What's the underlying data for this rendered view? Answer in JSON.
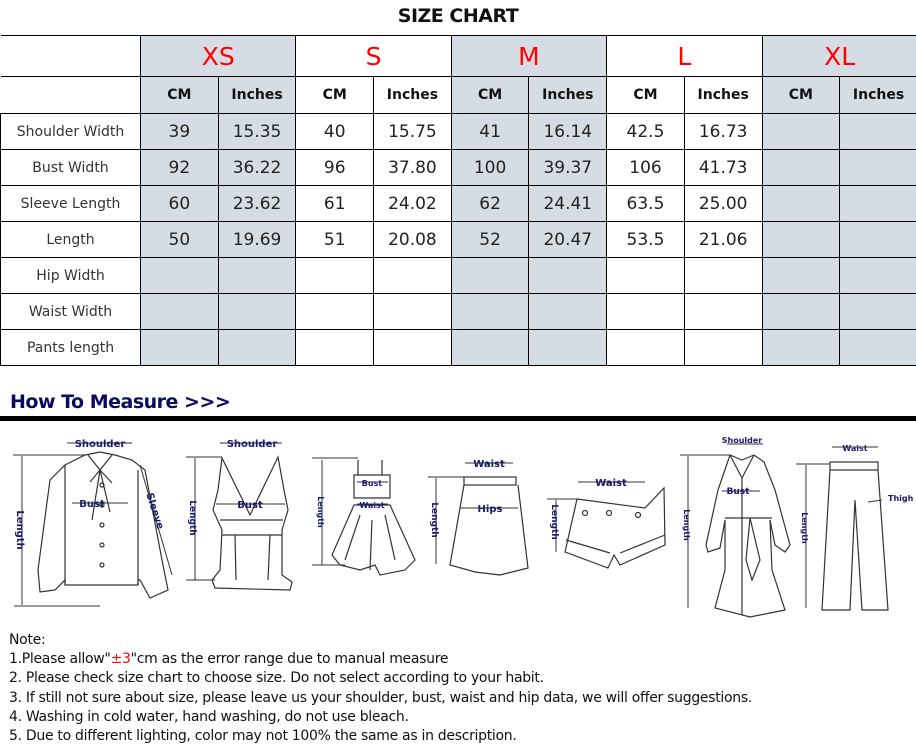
{
  "title": "SIZE CHART",
  "sizes": [
    "XS",
    "S",
    "M",
    "L",
    "XL"
  ],
  "units": [
    "CM",
    "Inches"
  ],
  "shaded_sizes": [
    "XS",
    "M",
    "XL"
  ],
  "colors": {
    "size_label": "#ff0000",
    "shading": "#d6dce4",
    "heading": "#0a0a60",
    "diagram_label": "#1a1a6e"
  },
  "rows": [
    {
      "label": "Shoulder Width",
      "values": [
        "39",
        "15.35",
        "40",
        "15.75",
        "41",
        "16.14",
        "42.5",
        "16.73",
        "",
        ""
      ]
    },
    {
      "label": "Bust Width",
      "values": [
        "92",
        "36.22",
        "96",
        "37.80",
        "100",
        "39.37",
        "106",
        "41.73",
        "",
        ""
      ]
    },
    {
      "label": "Sleeve Length",
      "values": [
        "60",
        "23.62",
        "61",
        "24.02",
        "62",
        "24.41",
        "63.5",
        "25.00",
        "",
        ""
      ]
    },
    {
      "label": "Length",
      "values": [
        "50",
        "19.69",
        "51",
        "20.08",
        "52",
        "20.47",
        "53.5",
        "21.06",
        "",
        ""
      ]
    },
    {
      "label": "Hip Width",
      "values": [
        "",
        "",
        "",
        "",
        "",
        "",
        "",
        "",
        "",
        ""
      ]
    },
    {
      "label": "Waist Width",
      "values": [
        "",
        "",
        "",
        "",
        "",
        "",
        "",
        "",
        "",
        ""
      ]
    },
    {
      "label": "Pants length",
      "values": [
        "",
        "",
        "",
        "",
        "",
        "",
        "",
        "",
        "",
        ""
      ]
    }
  ],
  "measure": {
    "heading": "How To Measure >>>",
    "labels": {
      "shoulder": "Shoulder",
      "bust": "Bust",
      "sleeve": "Sleeve",
      "length": "Length",
      "waist": "Waist",
      "hips": "Hips",
      "thigh": "Thigh"
    }
  },
  "notes": {
    "title": "Note:",
    "line1_pre": "1.Please allow\"",
    "line1_red": "±3",
    "line1_post": "\"cm as the error range due to manual measure",
    "line2": "2. Please check size chart to choose size. Do not select according to your habit.",
    "line3": "3. If still not sure about size, please leave us your shoulder, bust, waist and hip data, we will offer suggestions.",
    "line4": "4. Washing in cold water, hand washing, do not use bleach.",
    "line5": "5. Due to different lighting, color may not 100% the same as in description."
  }
}
